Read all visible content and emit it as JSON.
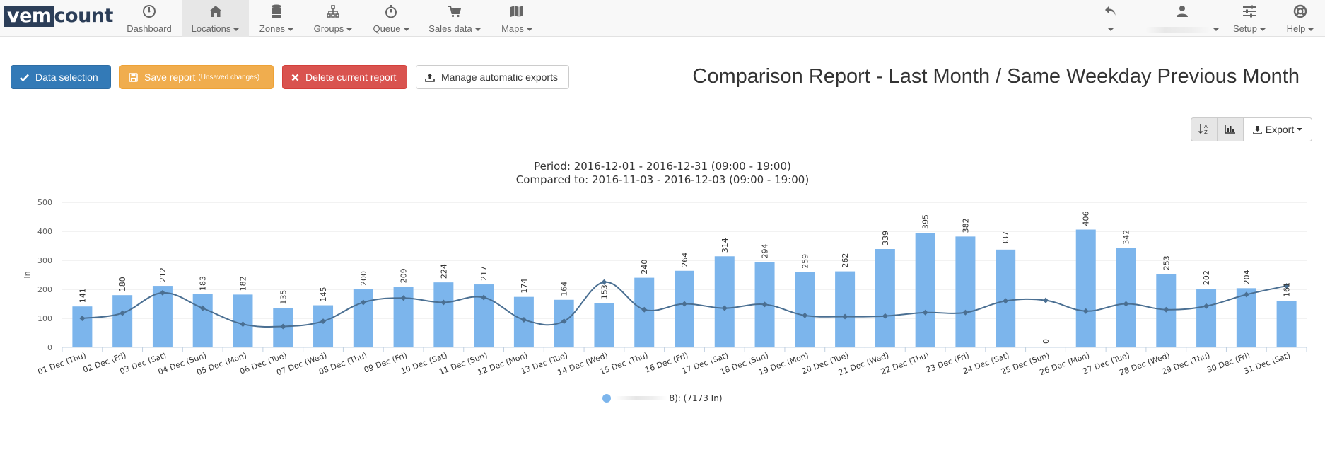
{
  "logo": {
    "part1": "vem",
    "part2": "count"
  },
  "nav": {
    "dashboard": "Dashboard",
    "locations": "Locations",
    "zones": "Zones",
    "groups": "Groups",
    "queue": "Queue",
    "sales": "Sales data",
    "maps": "Maps",
    "setup": "Setup",
    "help": "Help"
  },
  "toolbar": {
    "data_selection": "Data selection",
    "save_report": "Save report",
    "unsaved": "(Unsaved changes)",
    "delete_report": "Delete current report",
    "manage_exports": "Manage automatic exports"
  },
  "report_title": "Comparison Report - Last Month / Same Weekday Previous Month",
  "chart_toolbar": {
    "export": "Export"
  },
  "chart_data": {
    "type": "bar",
    "subtitle1": "Period: 2016-12-01 - 2016-12-31 (09:00 - 19:00)",
    "subtitle2": "Compared to: 2016-11-03 - 2016-12-03 (09:00 - 19:00)",
    "ylabel": "In",
    "ylim": [
      0,
      500
    ],
    "yticks": [
      0,
      100,
      200,
      300,
      400,
      500
    ],
    "grid": true,
    "categories": [
      "01 Dec (Thu)",
      "02 Dec (Fri)",
      "03 Dec (Sat)",
      "04 Dec (Sun)",
      "05 Dec (Mon)",
      "06 Dec (Tue)",
      "07 Dec (Wed)",
      "08 Dec (Thu)",
      "09 Dec (Fri)",
      "10 Dec (Sat)",
      "11 Dec (Sun)",
      "12 Dec (Mon)",
      "13 Dec (Tue)",
      "14 Dec (Wed)",
      "15 Dec (Thu)",
      "16 Dec (Fri)",
      "17 Dec (Sat)",
      "18 Dec (Sun)",
      "19 Dec (Mon)",
      "20 Dec (Tue)",
      "21 Dec (Wed)",
      "22 Dec (Thu)",
      "23 Dec (Fri)",
      "24 Dec (Sat)",
      "25 Dec (Sun)",
      "26 Dec (Mon)",
      "27 Dec (Tue)",
      "28 Dec (Wed)",
      "29 Dec (Thu)",
      "30 Dec (Fri)",
      "31 Dec (Sat)"
    ],
    "series": [
      {
        "values": [
          141,
          180,
          212,
          183,
          182,
          135,
          145,
          200,
          209,
          224,
          217,
          174,
          164,
          153,
          240,
          264,
          314,
          294,
          259,
          262,
          339,
          395,
          382,
          337,
          0,
          406,
          342,
          253,
          202,
          204,
          161
        ],
        "color": "#7cb5ec"
      },
      {
        "values": [
          100,
          118,
          188,
          135,
          80,
          72,
          90,
          155,
          170,
          155,
          172,
          95,
          90,
          225,
          130,
          150,
          135,
          148,
          110,
          106,
          108,
          120,
          120,
          160,
          162,
          125,
          150,
          130,
          142,
          182,
          212
        ],
        "color": "#4a6f92"
      }
    ],
    "legend": {
      "suffix": "8): (7173 In)",
      "placement": "bottom-center"
    }
  }
}
